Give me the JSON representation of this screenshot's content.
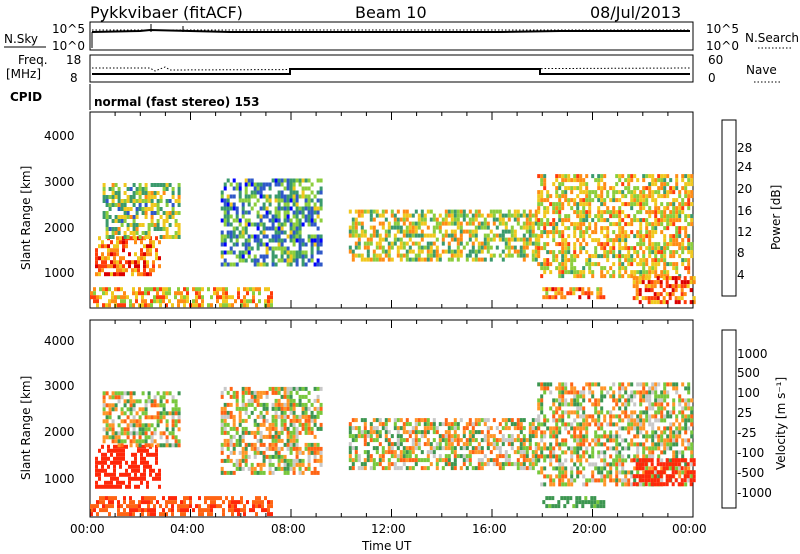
{
  "header": {
    "station": "Pykkvibaer (fitACF)",
    "beam": "Beam 10",
    "date": "08/Jul/2013"
  },
  "panels": {
    "nsky": {
      "left_label": "N.Sky",
      "left_ticks": [
        "10^5",
        "10^0"
      ],
      "right_ticks": [
        "10^5",
        "10^0"
      ],
      "right_label": "N.Search"
    },
    "freq": {
      "left_label_line1": "Freq.",
      "left_label_line2": "[MHz]",
      "left_ticks": [
        "18",
        "8"
      ],
      "right_ticks": [
        "60",
        "0"
      ],
      "right_label": "Nave"
    },
    "cpid": {
      "label": "CPID",
      "text": "normal (fast stereo) 153"
    },
    "power": {
      "ylabel": "Slant Range [km]",
      "yticks": [
        "4000",
        "3000",
        "2000",
        "1000"
      ],
      "colorbar_label": "Power [dB]",
      "colorbar_ticks": [
        "28",
        "24",
        "20",
        "16",
        "12",
        "8",
        "4"
      ]
    },
    "velocity": {
      "ylabel": "Slant Range [km]",
      "yticks": [
        "4000",
        "3000",
        "2000",
        "1000"
      ],
      "colorbar_label": "Velocity [m s⁻¹]",
      "colorbar_ticks": [
        "1000",
        "500",
        "100",
        "25",
        "-25",
        "-100",
        "-500",
        "-1000"
      ]
    },
    "xaxis": {
      "ticks": [
        "00:00",
        "04:00",
        "08:00",
        "12:00",
        "16:00",
        "20:00",
        "00:00"
      ],
      "label": "Time UT"
    }
  },
  "colors": {
    "power_scale": [
      "#0000ff",
      "#2f58c8",
      "#3a9a6c",
      "#8cce3c",
      "#f0c81e",
      "#ff8c14",
      "#ff3c0a",
      "#dc0000"
    ],
    "velocity_scale": [
      "#1432c8",
      "#2a64c8",
      "#3c9650",
      "#78c83c",
      "#c8c8c8",
      "#ff9628",
      "#ff6414",
      "#ff280a",
      "#dc0000"
    ]
  },
  "chart_data": [
    {
      "type": "heatmap",
      "title": "Power",
      "x_unit": "hours UT",
      "xlim": [
        0,
        24
      ],
      "ylim": [
        180,
        4600
      ],
      "zlim": [
        0,
        30
      ],
      "ylabel": "Slant Range [km]",
      "colorbar_label": "Power [dB]",
      "regions": [
        {
          "t0": 0.2,
          "t1": 2.8,
          "r0": 900,
          "r1": 1800,
          "value": 24
        },
        {
          "t0": 0.5,
          "t1": 3.6,
          "r0": 1800,
          "r1": 3000,
          "value": 14
        },
        {
          "t0": 0.0,
          "t1": 7.2,
          "r0": 250,
          "r1": 650,
          "value": 20
        },
        {
          "t0": 5.2,
          "t1": 9.2,
          "r0": 1200,
          "r1": 3100,
          "value": 10
        },
        {
          "t0": 10.3,
          "t1": 17.8,
          "r0": 1300,
          "r1": 2400,
          "value": 16
        },
        {
          "t0": 17.8,
          "t1": 24.0,
          "r0": 900,
          "r1": 3200,
          "value": 18
        },
        {
          "t0": 18.0,
          "t1": 20.4,
          "r0": 400,
          "r1": 650,
          "value": 22
        },
        {
          "t0": 21.6,
          "t1": 24.0,
          "r0": 300,
          "r1": 900,
          "value": 24
        }
      ]
    },
    {
      "type": "heatmap",
      "title": "Velocity",
      "x_unit": "hours UT",
      "xlim": [
        0,
        24
      ],
      "ylim": [
        180,
        4600
      ],
      "zlim": [
        -1000,
        1000
      ],
      "ylabel": "Slant Range [km]",
      "colorbar_label": "Velocity [m s⁻¹]",
      "regions": [
        {
          "t0": 0.2,
          "t1": 2.8,
          "r0": 900,
          "r1": 1800,
          "value": -500
        },
        {
          "t0": 0.5,
          "t1": 3.6,
          "r0": 1800,
          "r1": 3000,
          "value": 0
        },
        {
          "t0": 0.0,
          "t1": 7.2,
          "r0": 250,
          "r1": 650,
          "value": -250
        },
        {
          "t0": 5.2,
          "t1": 9.2,
          "r0": 1200,
          "r1": 3100,
          "value": 0
        },
        {
          "t0": 10.3,
          "t1": 17.8,
          "r0": 1300,
          "r1": 2400,
          "value": 0
        },
        {
          "t0": 17.8,
          "t1": 24.0,
          "r0": 900,
          "r1": 3200,
          "value": 0
        },
        {
          "t0": 18.0,
          "t1": 20.4,
          "r0": 400,
          "r1": 650,
          "value": 200
        },
        {
          "t0": 21.6,
          "t1": 24.0,
          "r0": 900,
          "r1": 1500,
          "value": -600
        }
      ]
    }
  ]
}
